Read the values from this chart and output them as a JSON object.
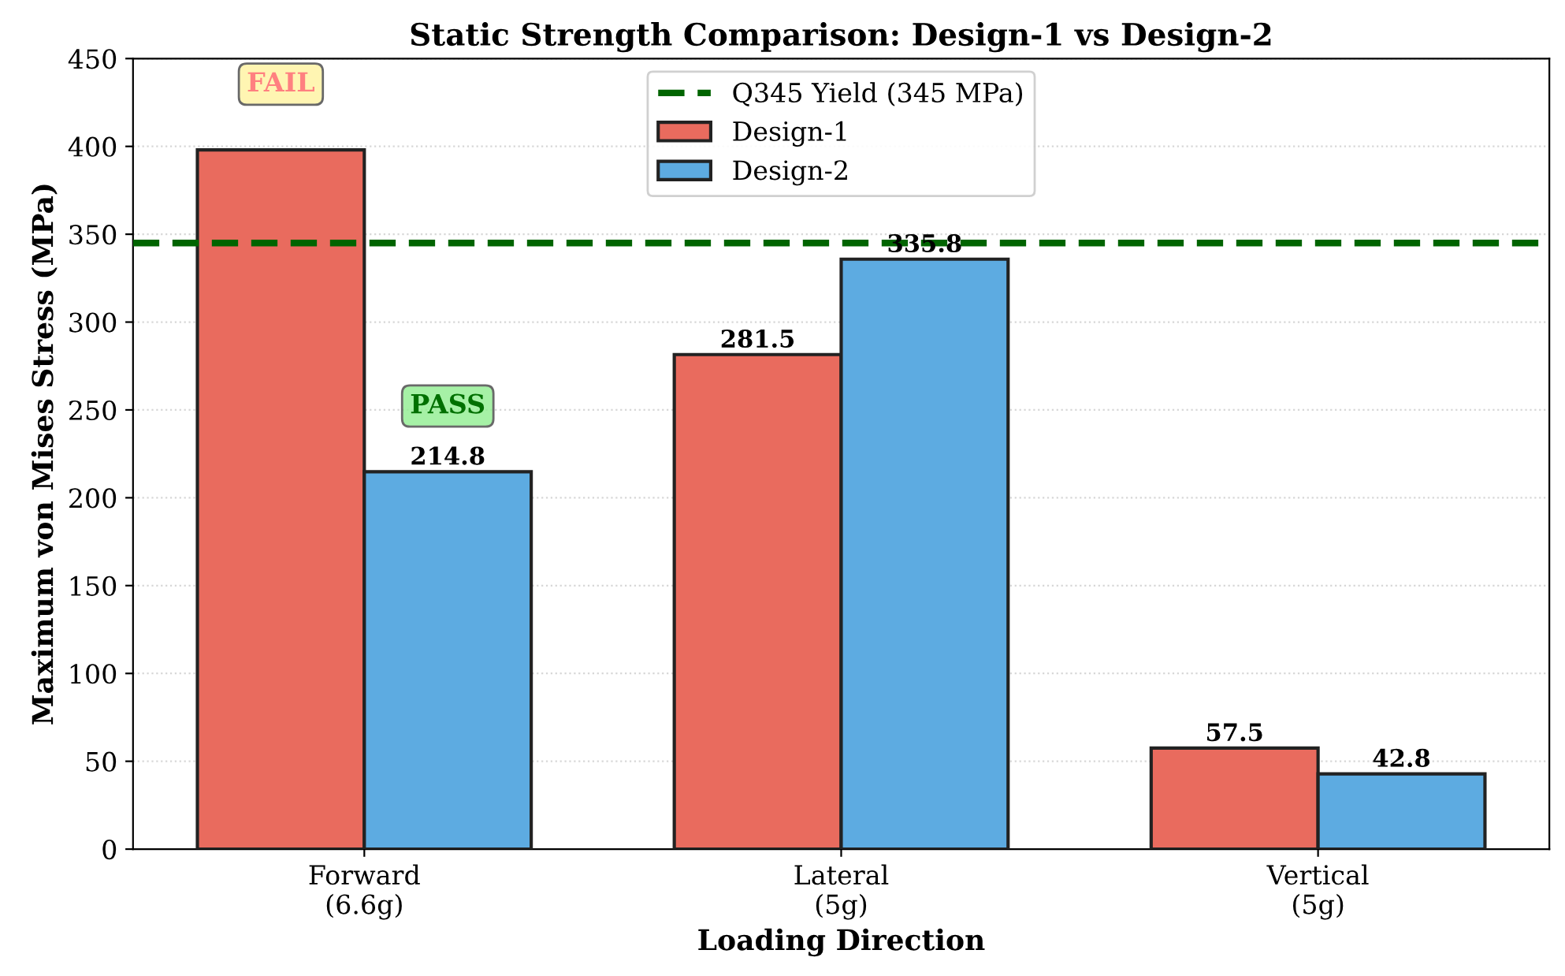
{
  "chart_data": {
    "type": "bar",
    "title": "Static Strength Comparison: Design-1 vs Design-2",
    "xlabel": "Loading Direction",
    "ylabel": "Maximum von Mises Stress (MPa)",
    "categories": [
      "Forward\n(6.6g)",
      "Lateral\n(5g)",
      "Vertical\n(5g)"
    ],
    "series": [
      {
        "name": "Design-1",
        "color": "#e96b5e",
        "values": [
          398,
          281.5,
          57.5
        ],
        "value_labels": [
          null,
          "281.5",
          "57.5"
        ]
      },
      {
        "name": "Design-2",
        "color": "#5dabe1",
        "values": [
          214.8,
          335.8,
          42.8
        ],
        "value_labels": [
          "214.8",
          "335.8",
          "42.8"
        ]
      }
    ],
    "ylim": [
      0,
      450
    ],
    "yticks": [
      0,
      50,
      100,
      150,
      200,
      250,
      300,
      350,
      400,
      450
    ],
    "grid": "y",
    "legend": "top",
    "ref_lines": [
      {
        "axis": "y",
        "value": 345,
        "label": "Q345 Yield (345 MPa)",
        "color": "#006400",
        "line_style": "dashed"
      }
    ],
    "annotations": [
      "FAIL",
      "PASS"
    ]
  }
}
